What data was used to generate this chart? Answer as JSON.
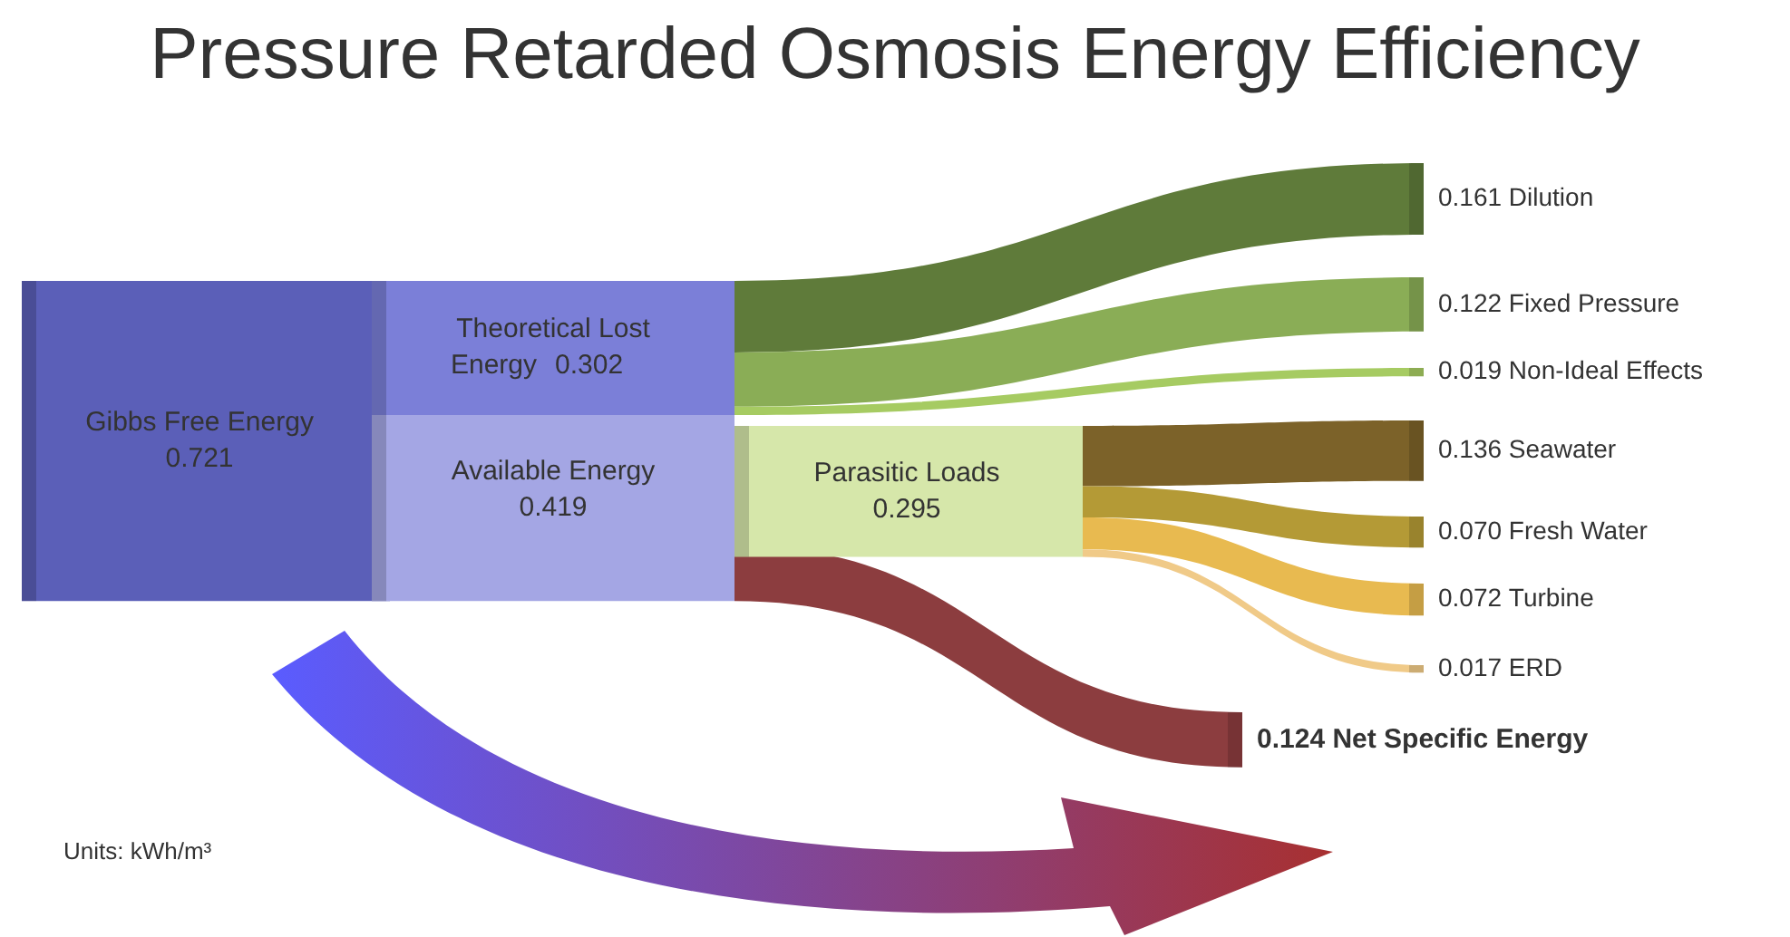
{
  "chart_data": {
    "type": "other",
    "title": "Pressure Retarded Osmosis Energy Efficiency",
    "categories": [
      "Gibbs Free Energy",
      "Theoretical Lost Energy",
      "Available Energy",
      "Parasitic Loads",
      "Dilution",
      "Fixed Pressure",
      "Non-Ideal Effects",
      "Seawater",
      "Fresh Water",
      "Turbine",
      "ERD",
      "Net Specific Energy"
    ],
    "values": [
      0.721,
      0.302,
      0.419,
      0.295,
      0.161,
      0.122,
      0.019,
      0.136,
      0.07,
      0.072,
      0.017,
      0.124
    ],
    "value_labels": [
      "0.721",
      "0.302",
      "0.419",
      "0.295",
      "0.161",
      "0.122",
      "0.019",
      "0.136",
      "0.070",
      "0.072",
      "0.017",
      "0.124"
    ],
    "colors": [
      "#5b5fb8",
      "#7b7fd8",
      "#a4a6e4",
      "#d6e7aa",
      "#5f7b3a",
      "#8aad56",
      "#a6cb62",
      "#7c6229",
      "#b49a36",
      "#e8ba50",
      "#f0ca88",
      "#8c3d3f"
    ],
    "annotations": [
      "Units: kWh/m³"
    ]
  }
}
